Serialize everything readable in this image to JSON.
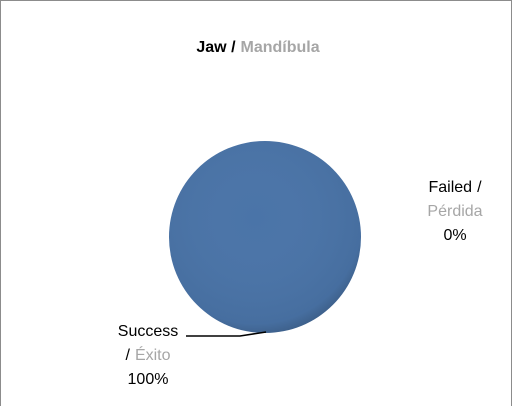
{
  "chart_data": {
    "type": "pie",
    "title": [
      "Jaw /",
      "Mandíbula"
    ],
    "categories": [
      [
        "Success",
        "/",
        "Éxito"
      ],
      [
        "Failed",
        "/",
        "Pérdida"
      ]
    ],
    "values": [
      100,
      0
    ],
    "value_labels": [
      "100%",
      "0%"
    ],
    "colors": [
      "#4a74a8",
      "#a94441"
    ]
  }
}
